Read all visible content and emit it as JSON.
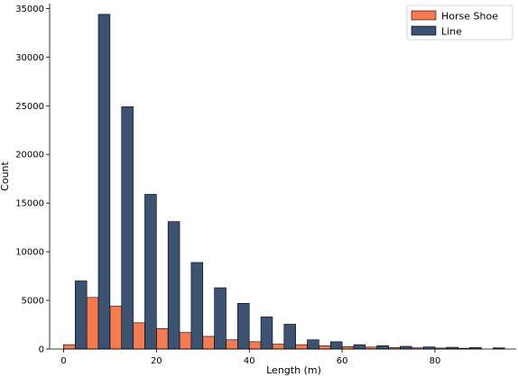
{
  "chart_data": {
    "type": "bar",
    "title": "",
    "xlabel": "Length (m)",
    "ylabel": "Count",
    "xlim": [
      -3,
      97.5
    ],
    "ylim": [
      0,
      35500
    ],
    "xticks": [
      0,
      20,
      40,
      60,
      80
    ],
    "yticks": [
      0,
      5000,
      10000,
      15000,
      20000,
      25000,
      30000,
      35000
    ],
    "grid": false,
    "legend_position": "top-right",
    "bin_width": 5,
    "bin_starts": [
      0,
      5,
      10,
      15,
      20,
      25,
      30,
      35,
      40,
      45,
      50,
      55,
      60,
      65,
      70,
      75,
      80,
      85,
      90
    ],
    "series": [
      {
        "name": "Horse Shoe",
        "color": "#f47a50",
        "values": [
          450,
          5300,
          4400,
          2700,
          2100,
          1700,
          1300,
          950,
          750,
          500,
          450,
          350,
          250,
          200,
          150,
          120,
          100,
          80,
          0
        ]
      },
      {
        "name": "Line",
        "color": "#3b5273",
        "values": [
          7000,
          34400,
          24900,
          15900,
          13100,
          8900,
          6300,
          4700,
          3300,
          2550,
          950,
          750,
          450,
          350,
          280,
          220,
          180,
          150,
          120
        ]
      }
    ]
  }
}
